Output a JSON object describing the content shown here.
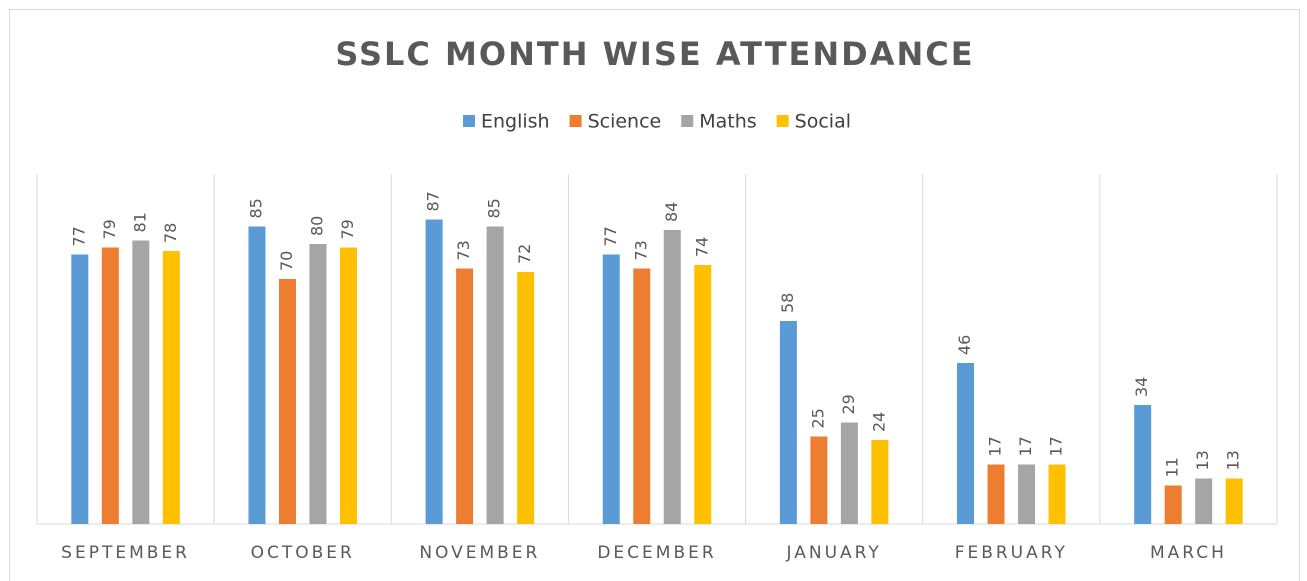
{
  "chart_data": {
    "type": "bar",
    "title": "SSLC MONTH WISE ATTENDANCE",
    "categories": [
      "SEPTEMBER",
      "OCTOBER",
      "NOVEMBER",
      "DECEMBER",
      "JANUARY",
      "FEBRUARY",
      "MARCH"
    ],
    "series": [
      {
        "name": "English",
        "color": "#5b9bd5",
        "values": [
          77,
          85,
          87,
          77,
          58,
          46,
          34
        ]
      },
      {
        "name": "Science",
        "color": "#ed7d31",
        "values": [
          79,
          70,
          73,
          73,
          25,
          17,
          11
        ]
      },
      {
        "name": "Maths",
        "color": "#a5a5a5",
        "values": [
          81,
          80,
          85,
          84,
          29,
          17,
          13
        ]
      },
      {
        "name": "Social",
        "color": "#ffc000",
        "values": [
          78,
          79,
          72,
          74,
          24,
          17,
          13
        ]
      }
    ],
    "ylim": [
      0,
      100
    ],
    "legend": "top",
    "grid": false
  }
}
